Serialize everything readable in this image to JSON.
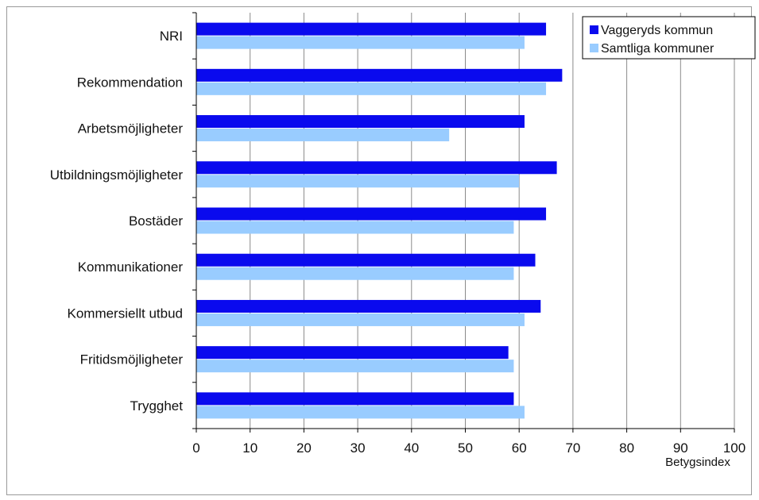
{
  "chart_data": {
    "type": "bar",
    "orientation": "horizontal",
    "categories": [
      "NRI",
      "Rekommendation",
      "Arbetsmöjligheter",
      "Utbildningsmöjligheter",
      "Bostäder",
      "Kommunikationer",
      "Kommersiellt utbud",
      "Fritidsmöjligheter",
      "Trygghet"
    ],
    "series": [
      {
        "name": "Vaggeryds kommun",
        "color": "#0a0aee",
        "values": [
          65,
          68,
          61,
          67,
          65,
          63,
          64,
          58,
          59
        ]
      },
      {
        "name": "Samtliga kommuner",
        "color": "#99ccff",
        "values": [
          61,
          65,
          47,
          60,
          59,
          59,
          61,
          59,
          61
        ]
      }
    ],
    "xlim": [
      0,
      100
    ],
    "xticks": [
      0,
      10,
      20,
      30,
      40,
      50,
      60,
      70,
      80,
      90,
      100
    ],
    "xlabel": "Betygsindex",
    "grid": "vertical",
    "legend_position": "top-right"
  }
}
